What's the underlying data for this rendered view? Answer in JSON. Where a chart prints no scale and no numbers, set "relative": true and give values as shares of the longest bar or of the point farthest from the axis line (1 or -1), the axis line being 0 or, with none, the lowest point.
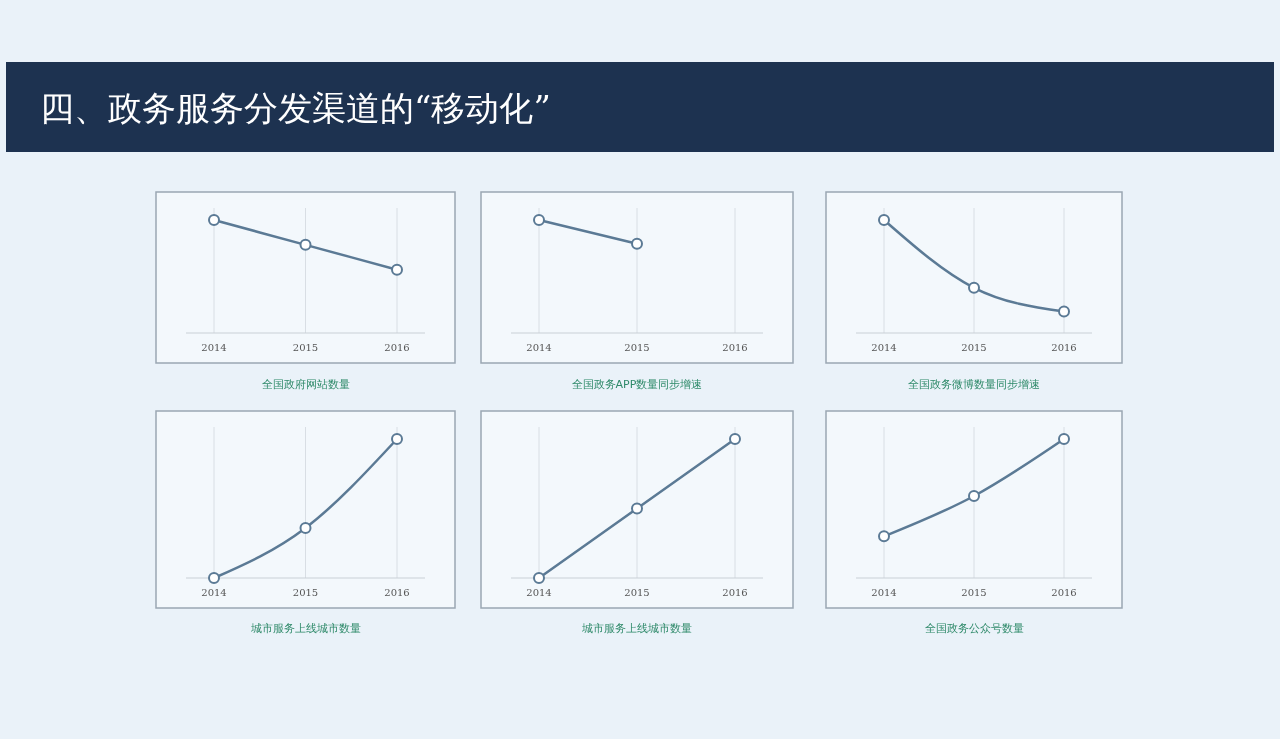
{
  "chart_data": [
    {
      "type": "other",
      "title": "四、政务服务分发渠道的“移动化”"
    },
    {
      "type": "line",
      "title": "全国政府网站数量",
      "categories": [
        "2014",
        "2015",
        "2016"
      ],
      "relative": true,
      "series": [
        {
          "color": "#5b7a95",
          "values": [
            1,
            0.78,
            0.56
          ]
        }
      ],
      "marker": "circle",
      "grid": "x"
    },
    {
      "type": "line",
      "title": "全国政务APP数量同步增速",
      "categories": [
        "2014",
        "2015",
        "2016"
      ],
      "relative": true,
      "series": [
        {
          "color": "#5b7a95",
          "values": [
            1,
            0.79,
            null
          ]
        }
      ],
      "marker": "circle",
      "grid": "x"
    },
    {
      "type": "line",
      "title": "全国政务微博数量同步增速",
      "categories": [
        "2014",
        "2015",
        "2016"
      ],
      "relative": true,
      "series": [
        {
          "color": "#5b7a95",
          "values": [
            1,
            0.4,
            0.19
          ]
        }
      ],
      "marker": "circle",
      "grid": "x"
    },
    {
      "type": "line",
      "title": "城市服务上线城市数量",
      "categories": [
        "2014",
        "2015",
        "2016"
      ],
      "relative": true,
      "series": [
        {
          "color": "#5b7a95",
          "values": [
            0,
            0.36,
            1
          ]
        }
      ],
      "marker": "circle",
      "grid": "x"
    },
    {
      "type": "line",
      "title": "城市服务上线城市数量",
      "categories": [
        "2014",
        "2015",
        "2016"
      ],
      "relative": true,
      "series": [
        {
          "color": "#5b7a95",
          "values": [
            0,
            0.5,
            1
          ]
        }
      ],
      "marker": "circle",
      "grid": "x"
    },
    {
      "type": "line",
      "title": "全国政务公众号数量",
      "categories": [
        "2014",
        "2015",
        "2016"
      ],
      "relative": true,
      "series": [
        {
          "color": "#5b7a95",
          "values": [
            0.3,
            0.59,
            1
          ]
        }
      ],
      "marker": "circle",
      "grid": "x"
    }
  ]
}
